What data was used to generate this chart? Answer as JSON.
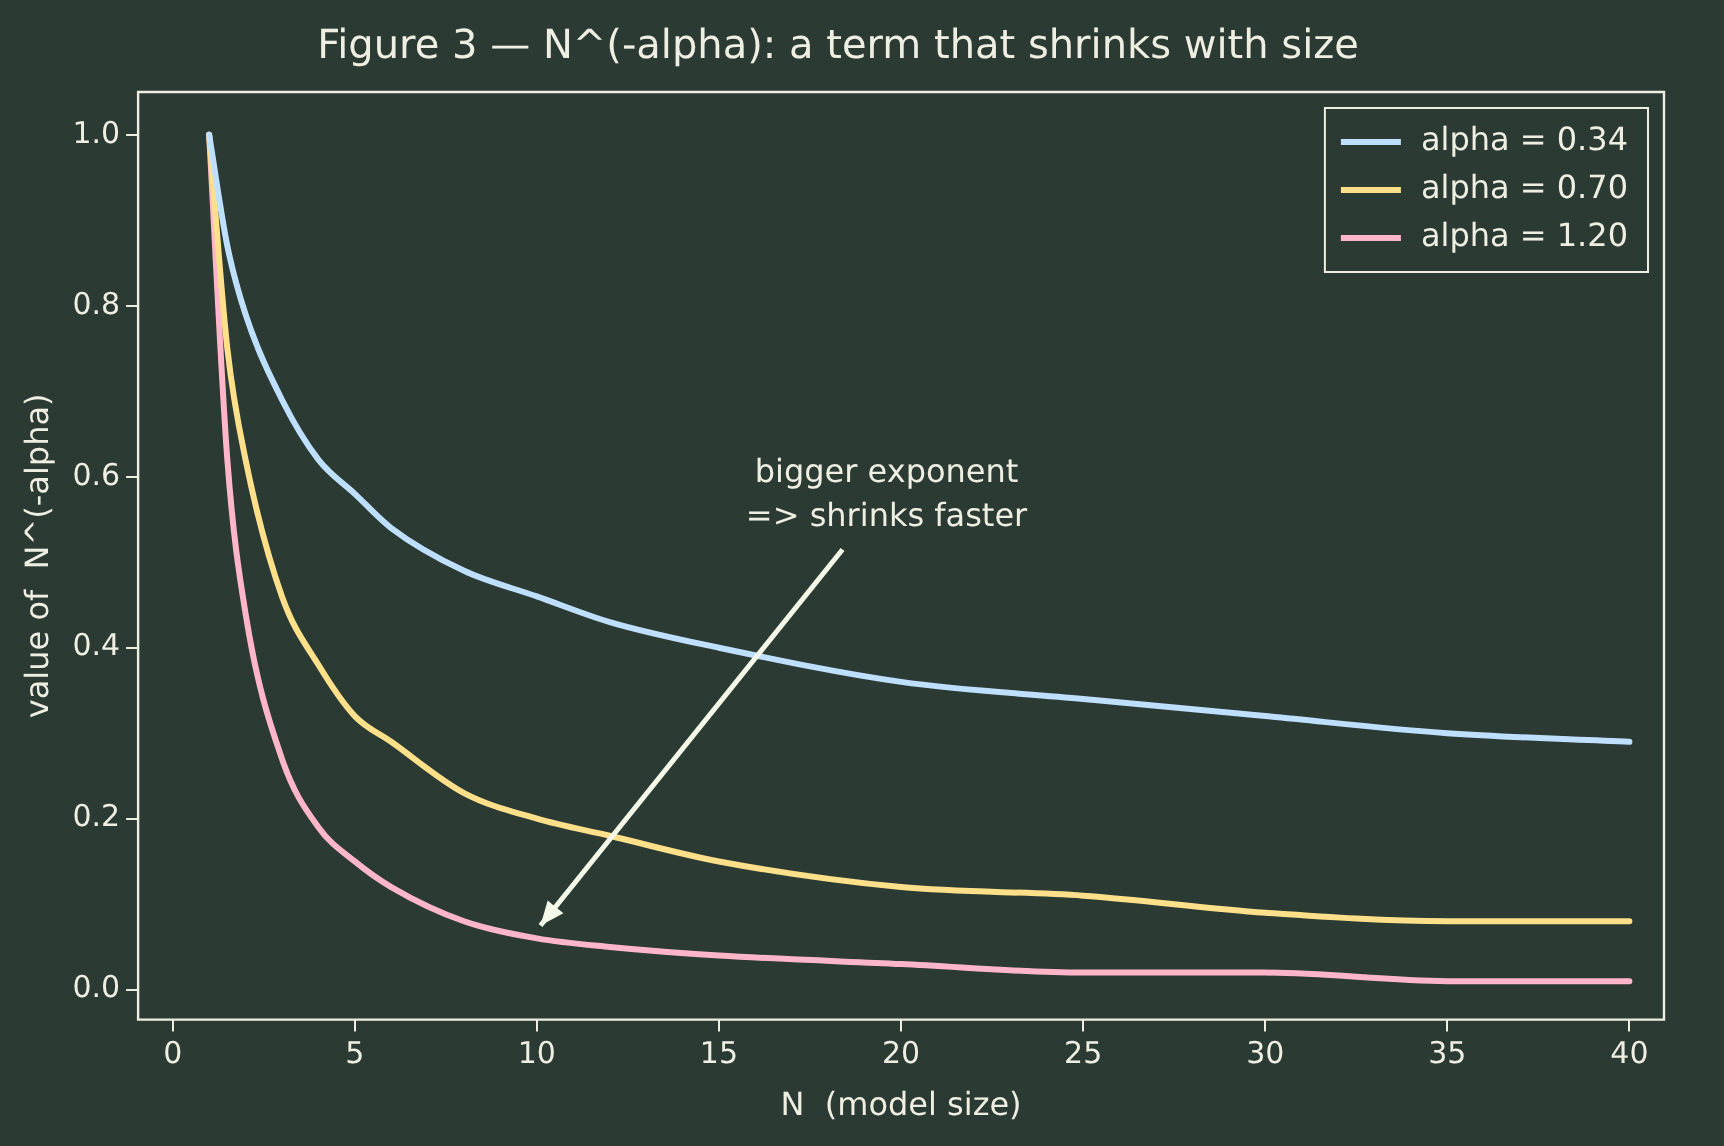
{
  "chart_data": {
    "type": "line",
    "title": "Figure 3 — N^(-alpha): a term that shrinks with size",
    "xlabel": "N  (model size)",
    "ylabel": "value of  N^(-alpha)",
    "x": [
      1,
      1.5,
      2,
      3,
      4,
      5,
      6,
      8,
      10,
      12,
      15,
      20,
      25,
      30,
      35,
      40
    ],
    "series": [
      {
        "name": "alpha = 0.34",
        "color": "#bfdfff",
        "values": [
          1,
          0.87,
          0.79,
          0.69,
          0.62,
          0.58,
          0.54,
          0.49,
          0.46,
          0.43,
          0.4,
          0.36,
          0.34,
          0.32,
          0.3,
          0.29
        ]
      },
      {
        "name": "alpha = 0.70",
        "color": "#ffe08a",
        "values": [
          1,
          0.75,
          0.62,
          0.46,
          0.38,
          0.32,
          0.29,
          0.23,
          0.2,
          0.18,
          0.15,
          0.12,
          0.11,
          0.09,
          0.08,
          0.08
        ]
      },
      {
        "name": "alpha = 1.20",
        "color": "#ffb6c8",
        "values": [
          1,
          0.62,
          0.44,
          0.27,
          0.19,
          0.15,
          0.12,
          0.08,
          0.06,
          0.05,
          0.04,
          0.03,
          0.02,
          0.02,
          0.01,
          0.01
        ]
      }
    ],
    "xlim": [
      -0.95,
      40.95
    ],
    "xticks": [
      0,
      5,
      10,
      15,
      20,
      25,
      30,
      35,
      40
    ],
    "ylim": [
      -0.035,
      1.05
    ],
    "yticks": [
      {
        "value": 0,
        "label": "0.0"
      },
      {
        "value": 0.2,
        "label": "0.2"
      },
      {
        "value": 0.4,
        "label": "0.4"
      },
      {
        "value": 0.6,
        "label": "0.6"
      },
      {
        "value": 0.8,
        "label": "0.8"
      },
      {
        "value": 1,
        "label": "1.0"
      }
    ],
    "grid": false,
    "legend": "top right",
    "marker": "none",
    "line_style": "solid",
    "annotations": [
      {
        "text": "bigger exponent\n=> shrinks faster",
        "x": 10.1,
        "y": 0.075
      }
    ]
  }
}
